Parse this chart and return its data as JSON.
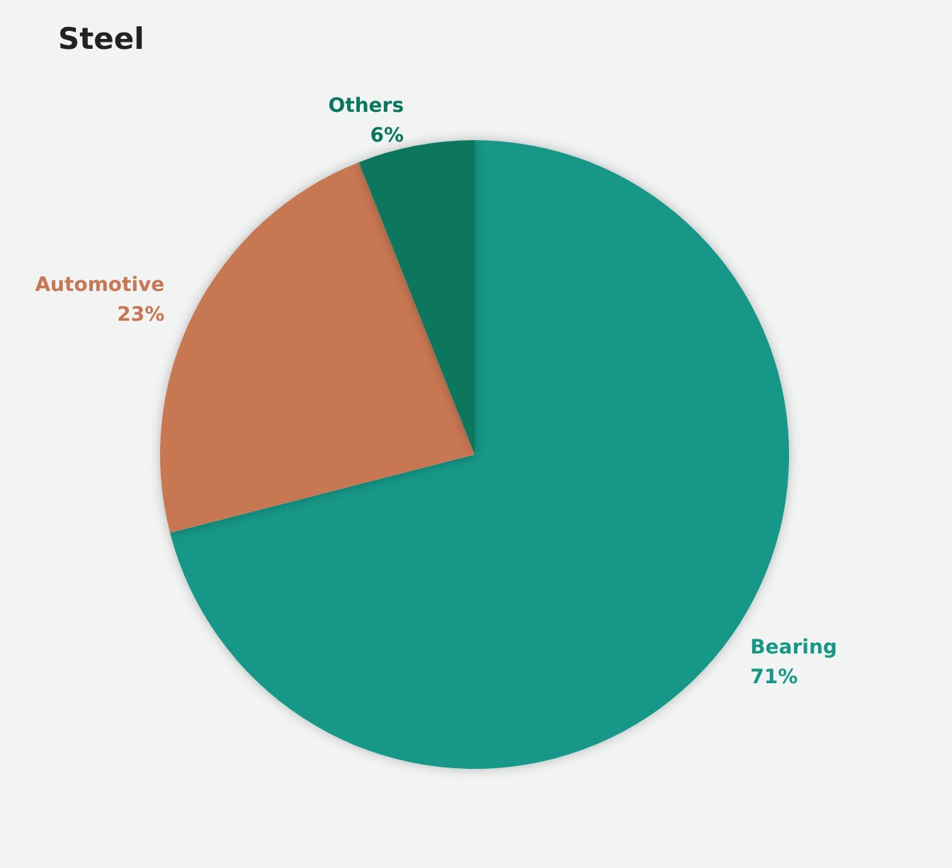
{
  "chart_data": {
    "type": "pie",
    "title": "Steel",
    "categories": [
      "Bearing",
      "Automotive",
      "Others"
    ],
    "values": [
      71,
      23,
      6
    ],
    "colors": [
      "#179787",
      "#c87753",
      "#08775d"
    ],
    "value_labels": [
      "71%",
      "23%",
      "6%"
    ],
    "legend": false
  }
}
